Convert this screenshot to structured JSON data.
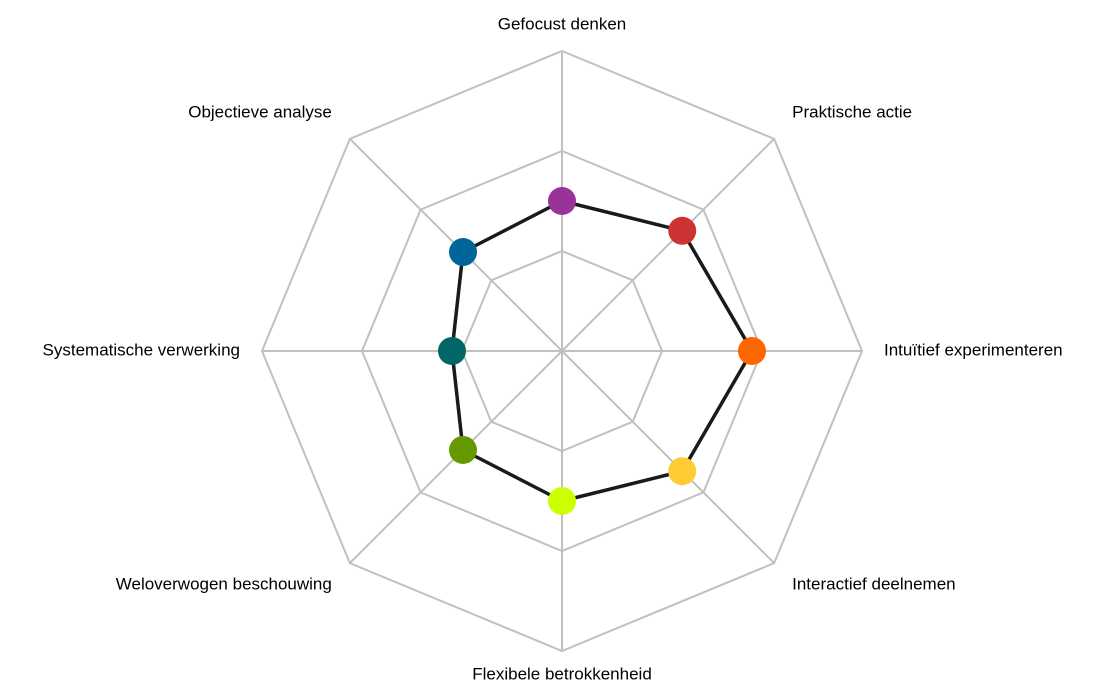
{
  "chart_data": {
    "type": "radar",
    "axes": [
      "Gefocust denken",
      "Praktische actie",
      "Intuïtief experimenteren",
      "Interactief deelnemen",
      "Flexibele betrokkenheid",
      "Weloverwogen beschouwing",
      "Systematische verwerking",
      "Objectieve analyse"
    ],
    "series": [
      {
        "values": [
          1.5,
          1.7,
          1.9,
          1.7,
          1.5,
          1.4,
          1.1,
          1.4
        ]
      }
    ],
    "point_colors": [
      "#993399",
      "#cc3333",
      "#ff6600",
      "#ffcc33",
      "#ccff00",
      "#669900",
      "#006666",
      "#006699"
    ],
    "range": [
      0,
      3
    ],
    "rings": 3,
    "grid": true,
    "grid_color": "#c0c0c0",
    "line_color": "#1a1a1a"
  }
}
